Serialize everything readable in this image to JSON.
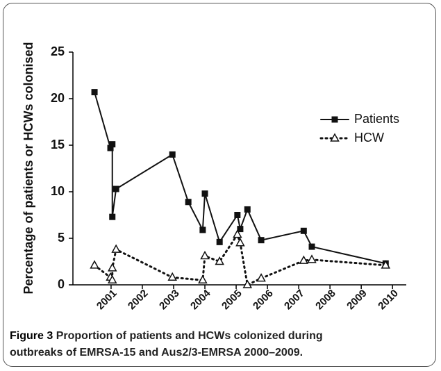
{
  "chart_data": {
    "type": "line",
    "y_label": "Percentage of patients or HCWs colonised",
    "xlim": [
      1999.78,
      2010.44
    ],
    "ylim": [
      0,
      25
    ],
    "xticks": [
      2001,
      2002,
      2003,
      2004,
      2005,
      2006,
      2007,
      2008,
      2009,
      2010
    ],
    "yticks": [
      0,
      5,
      10,
      15,
      20,
      25
    ],
    "series": [
      {
        "name": "Patients",
        "color": "#111111",
        "marker": "square",
        "linestyle": "solid",
        "x": [
          2000.47,
          2000.98,
          2001.04,
          2001.04,
          2001.16,
          2002.96,
          2003.47,
          2003.93,
          2004.0,
          2004.47,
          2005.04,
          2005.13,
          2005.36,
          2005.8,
          2007.16,
          2007.42,
          2009.78
        ],
        "values": [
          20.7,
          14.7,
          15.1,
          7.3,
          10.3,
          14.0,
          8.9,
          5.9,
          9.8,
          4.6,
          7.5,
          6.0,
          8.1,
          4.8,
          5.8,
          4.1,
          2.3
        ]
      },
      {
        "name": "HCW",
        "color": "#111111",
        "marker": "triangle",
        "linestyle": "dotted",
        "x": [
          2000.47,
          2000.98,
          2001.04,
          2001.04,
          2001.16,
          2002.96,
          2003.93,
          2004.0,
          2004.47,
          2005.04,
          2005.13,
          2005.36,
          2005.8,
          2007.16,
          2007.42,
          2009.78
        ],
        "values": [
          2.1,
          0.8,
          0.5,
          1.8,
          3.8,
          0.8,
          0.5,
          3.1,
          2.5,
          5.4,
          4.5,
          0.0,
          0.7,
          2.6,
          2.7,
          2.1
        ]
      }
    ]
  },
  "caption": {
    "label": "Figure 3",
    "text_line1": "Proportion of patients and HCWs colonized during",
    "text_line2": "outbreaks of EMRSA-15 and Aus2/3-EMRSA 2000–2009."
  }
}
